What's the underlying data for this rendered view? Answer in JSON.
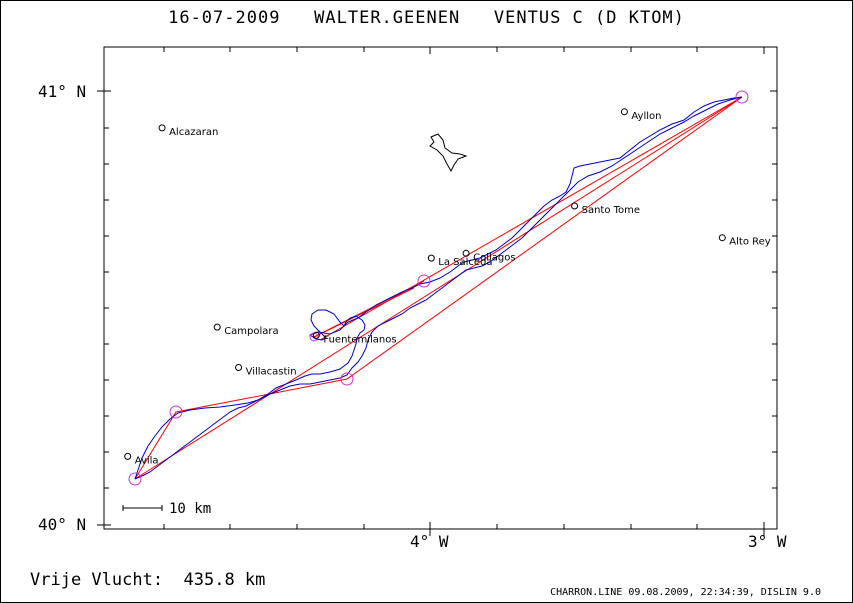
{
  "title": "16-07-2009   WALTER.GEENEN   VENTUS C (D KTOM)",
  "axes": {
    "lat_top": "41° N",
    "lat_bottom": "40° N",
    "lon_left": "4° W",
    "lon_right": "3° W"
  },
  "scale_bar": "10 km",
  "distance_label": "Vrije Vlucht:  435.8 km",
  "footer": "CHARRON.LINE 09.08.2009, 22:34:39, DISLIN 9.0",
  "places": [
    {
      "name": "Alcazaran",
      "lon": -4.802,
      "lat": 40.915
    },
    {
      "name": "Ayllon",
      "lon": -3.418,
      "lat": 40.952
    },
    {
      "name": "Santo Tome",
      "lon": -3.567,
      "lat": 40.735
    },
    {
      "name": "Alto Rey",
      "lon": -3.125,
      "lat": 40.662
    },
    {
      "name": "La Salceda",
      "lon": -3.996,
      "lat": 40.615
    },
    {
      "name": "Collagos",
      "lon": -3.892,
      "lat": 40.626
    },
    {
      "name": "Campolara",
      "lon": -4.637,
      "lat": 40.456
    },
    {
      "name": "Fuentemilanos",
      "lon": -4.34,
      "lat": 40.437
    },
    {
      "name": "Villacastin",
      "lon": -4.573,
      "lat": 40.363
    },
    {
      "name": "Avila",
      "lon": -4.905,
      "lat": 40.158
    }
  ],
  "colors": {
    "track": "#0000cc",
    "task": "#ff0000",
    "turnpoint": "#cc33cc",
    "text": "#000000"
  }
}
